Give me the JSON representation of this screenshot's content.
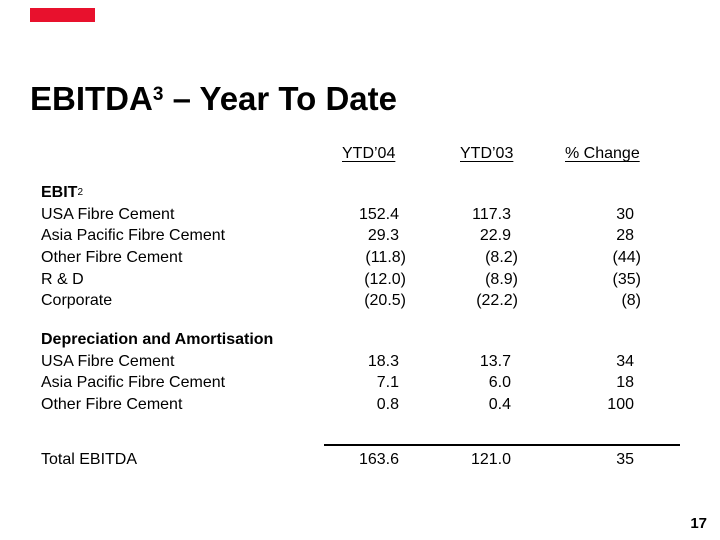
{
  "slide": {
    "title": {
      "text": "EBITDA",
      "superscript": "3",
      "suffix": " – Year To Date"
    },
    "page_number": "17",
    "accent_bar_color": "#e8112d",
    "text_color": "#000000",
    "background_color": "#ffffff"
  },
  "table": {
    "column_headers": [
      "YTD’04",
      "YTD’03",
      "% Change"
    ],
    "sections": [
      {
        "heading": "EBIT",
        "heading_superscript": "2",
        "rows": [
          {
            "label": "USA Fibre Cement",
            "values": [
              "152.4",
              "117.3",
              "30"
            ]
          },
          {
            "label": "Asia Pacific Fibre Cement",
            "values": [
              "29.3",
              "22.9",
              "28"
            ]
          },
          {
            "label": "Other Fibre Cement",
            "values": [
              "(11.8)",
              "(8.2)",
              "(44)"
            ]
          },
          {
            "label": "R & D",
            "values": [
              "(12.0)",
              "(8.9)",
              "(35)"
            ]
          },
          {
            "label": "Corporate",
            "values": [
              "(20.5)",
              "(22.2)",
              "(8)"
            ]
          }
        ]
      },
      {
        "heading": "Depreciation and Amortisation",
        "heading_superscript": "",
        "rows": [
          {
            "label": "USA Fibre Cement",
            "values": [
              "18.3",
              "13.7",
              "34"
            ]
          },
          {
            "label": "Asia Pacific Fibre Cement",
            "values": [
              "7.1",
              "6.0",
              "18"
            ]
          },
          {
            "label": "Other Fibre Cement",
            "values": [
              "0.8",
              "0.4",
              "100"
            ]
          }
        ]
      }
    ],
    "total_row": {
      "label": "Total EBITDA",
      "values": [
        "163.6",
        "121.0",
        "35"
      ]
    }
  }
}
